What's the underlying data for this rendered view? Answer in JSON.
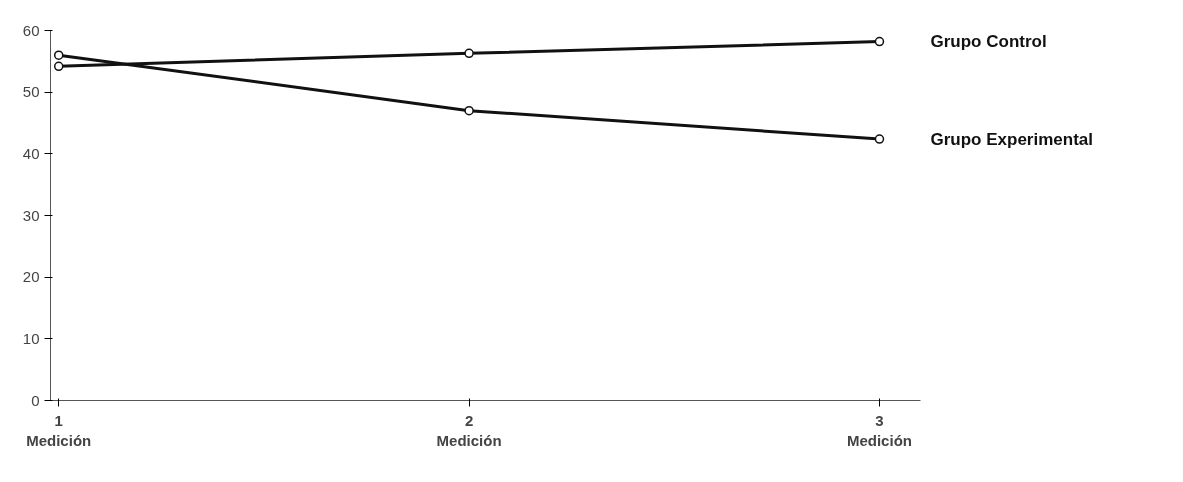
{
  "chart_data": {
    "type": "line",
    "x": [
      1,
      2,
      3
    ],
    "series": [
      {
        "name": "Grupo Control",
        "color": "#111111",
        "values": [
          54.2,
          56.3,
          58.2
        ]
      },
      {
        "name": "Grupo Experimental",
        "color": "#111111",
        "values": [
          56,
          47,
          42.4
        ]
      }
    ],
    "xlim": [
      0.98,
      3.1
    ],
    "ylim": [
      0,
      60
    ],
    "xticks": [
      {
        "value": 1,
        "label": "1\nMedición"
      },
      {
        "value": 2,
        "label": "2\nMedición"
      },
      {
        "value": 3,
        "label": "3\nMedición"
      }
    ],
    "yticks": [
      0,
      10,
      20,
      30,
      40,
      50,
      60
    ],
    "marker": "circle",
    "line_style": "solid",
    "grid": false,
    "legend": "right"
  }
}
